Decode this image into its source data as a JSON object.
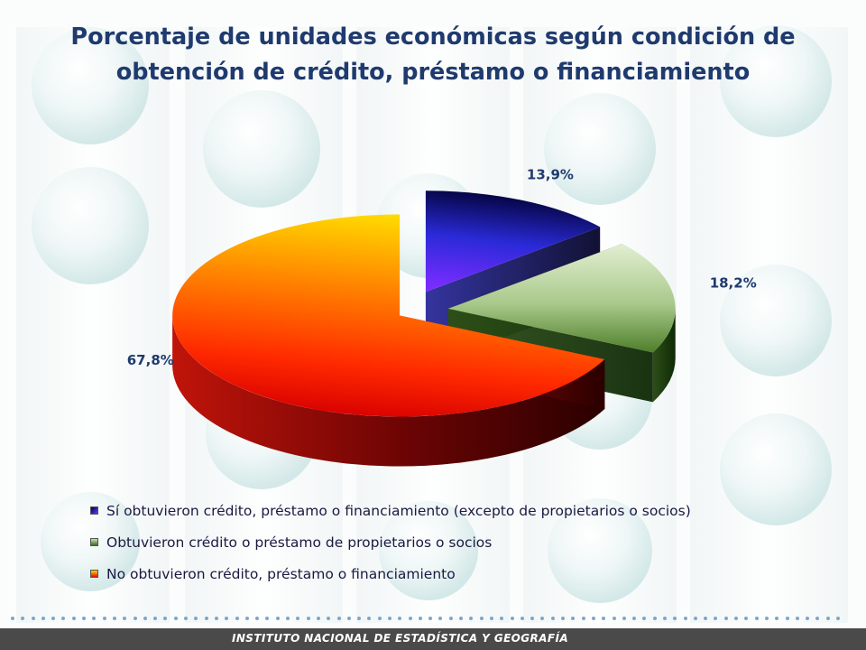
{
  "chart_data": {
    "type": "pie",
    "style": "3d-exploded",
    "title_lines": [
      "Porcentaje de unidades económicas según condición de",
      "obtención de crédito, préstamo o financiamiento"
    ],
    "labels": [
      "Sí obtuvieron crédito, préstamo o financiamiento (excepto de propietarios o socios)",
      "Obtuvieron crédito o préstamo de propietarios o socios",
      "No obtuvieron crédito, préstamo o financiamiento"
    ],
    "values": [
      13.9,
      18.2,
      67.8
    ],
    "value_labels": [
      "13,9%",
      "18,2%",
      "67,8%"
    ],
    "colors": [
      "#1a1a8c",
      "#6a9a46",
      "#e8200c"
    ],
    "legend_placement": "bottom"
  },
  "footer": {
    "institution": "Instituto Nacional de Estadística y Geografía"
  }
}
